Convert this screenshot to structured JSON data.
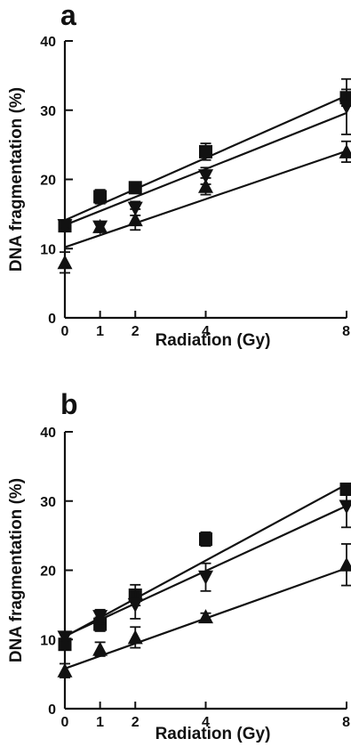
{
  "chart_data": [
    {
      "type": "scatter",
      "panel_label": "a",
      "xlabel": "Radiation (Gy)",
      "ylabel": "DNA fragmentation (%)",
      "xlim": [
        0,
        8
      ],
      "ylim": [
        0,
        40
      ],
      "xticks": [
        0,
        1,
        2,
        4,
        8
      ],
      "yticks": [
        0,
        10,
        20,
        30,
        40
      ],
      "grid": false,
      "legend": "none",
      "series": [
        {
          "marker": "square",
          "x": [
            0,
            1,
            2,
            4,
            8
          ],
          "y": [
            13.3,
            17.5,
            18.8,
            24.0,
            31.8
          ],
          "error": [
            0.5,
            1.0,
            0.5,
            1.2,
            1.2
          ],
          "fit": [
            14.1,
            32.1
          ]
        },
        {
          "marker": "triangle-down",
          "x": [
            0,
            1,
            2,
            4,
            8
          ],
          "y": [
            13.3,
            13.1,
            15.8,
            20.5,
            30.5
          ],
          "error": [
            0.5,
            0.5,
            1.0,
            1.2,
            4.0
          ],
          "fit": [
            13.4,
            29.6
          ]
        },
        {
          "marker": "triangle-up",
          "x": [
            0,
            1,
            2,
            4,
            8
          ],
          "y": [
            8.0,
            13.2,
            14.2,
            19.0,
            24.0
          ],
          "error": [
            1.5,
            0.5,
            1.5,
            1.2,
            1.5
          ],
          "fit": [
            10.2,
            24.1
          ]
        }
      ]
    },
    {
      "type": "scatter",
      "panel_label": "b",
      "xlabel": "Radiation (Gy)",
      "ylabel": "DNA fragmentation (%)",
      "xlim": [
        0,
        8
      ],
      "ylim": [
        0,
        40
      ],
      "xticks": [
        0,
        1,
        2,
        4,
        8
      ],
      "yticks": [
        0,
        10,
        20,
        30,
        40
      ],
      "grid": false,
      "legend": "none",
      "series": [
        {
          "marker": "square",
          "x": [
            0,
            1,
            2,
            4,
            8
          ],
          "y": [
            9.3,
            12.2,
            16.4,
            24.5,
            31.7
          ],
          "error": [
            0.5,
            1.0,
            1.5,
            1.0,
            0.8
          ],
          "fit": [
            10.4,
            32.4
          ]
        },
        {
          "marker": "triangle-down",
          "x": [
            0,
            1,
            2,
            4,
            8
          ],
          "y": [
            10.3,
            13.3,
            15.0,
            19.0,
            29.2
          ],
          "error": [
            0.5,
            1.0,
            2.0,
            2.0,
            3.0
          ],
          "fit": [
            10.5,
            29.3
          ]
        },
        {
          "marker": "triangle-up",
          "x": [
            0,
            1,
            2,
            4,
            8
          ],
          "y": [
            5.5,
            8.6,
            10.3,
            13.3,
            20.8
          ],
          "error": [
            1.0,
            1.0,
            1.5,
            0.5,
            3.0
          ],
          "fit": [
            5.8,
            20.3
          ]
        }
      ]
    }
  ]
}
